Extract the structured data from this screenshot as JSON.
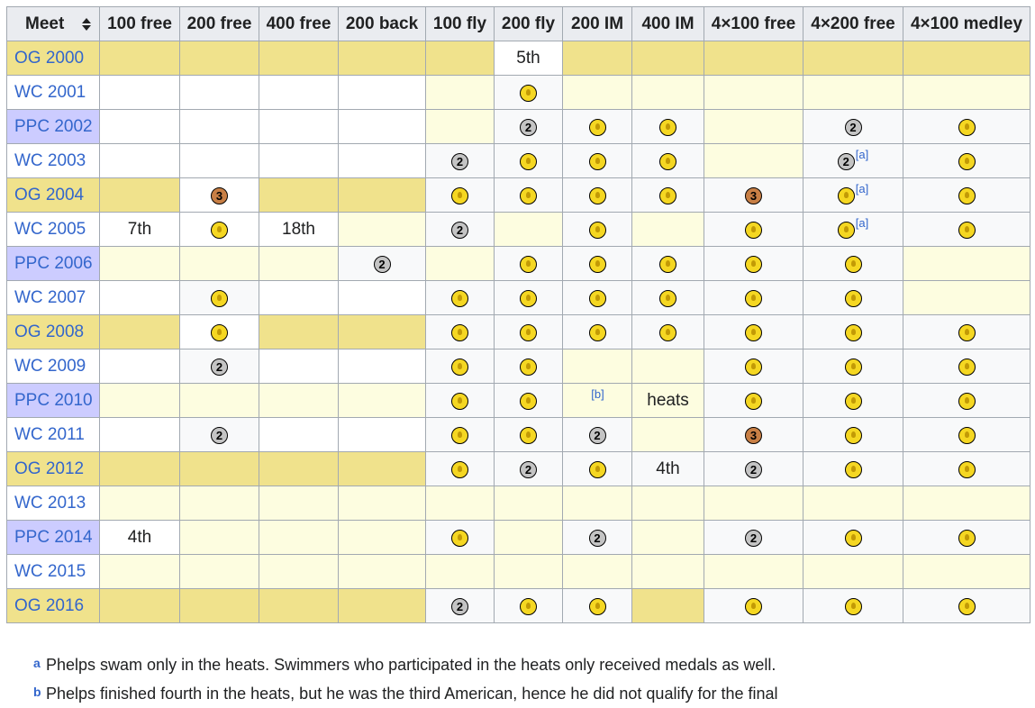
{
  "table": {
    "header": [
      "Meet",
      "100 free",
      "200 free",
      "400 free",
      "200 back",
      "100 fly",
      "200 fly",
      "200 IM",
      "400 IM",
      "4×100 free",
      "4×200 free",
      "4×100 medley"
    ],
    "rows": [
      {
        "meet": "OG 2000",
        "type": "og",
        "cells": [
          "",
          "",
          "",
          "",
          "",
          "5th",
          "",
          "",
          "",
          "",
          ""
        ]
      },
      {
        "meet": "WC 2001",
        "type": "wc",
        "cells": [
          "",
          "",
          "",
          "",
          "",
          "gold",
          "",
          "",
          "",
          "",
          ""
        ]
      },
      {
        "meet": "PPC 2002",
        "type": "ppc",
        "cells": [
          "",
          "",
          "",
          "",
          "",
          "silver",
          "gold",
          "gold",
          "",
          "silver",
          "gold"
        ]
      },
      {
        "meet": "WC 2003",
        "type": "wc",
        "cells": [
          "",
          "",
          "",
          "",
          "silver",
          "gold",
          "gold",
          "gold",
          "",
          "silver",
          "gold"
        ]
      },
      {
        "meet": "OG 2004",
        "type": "og",
        "cells": [
          "",
          "bronze",
          "",
          "",
          "gold",
          "gold",
          "gold",
          "gold",
          "bronze",
          "gold",
          "gold"
        ]
      },
      {
        "meet": "WC 2005",
        "type": "wc",
        "cells": [
          "7th",
          "gold",
          "18th",
          "",
          "silver",
          "",
          "gold",
          "",
          "gold",
          "gold",
          "gold"
        ]
      },
      {
        "meet": "PPC 2006",
        "type": "ppc",
        "cells": [
          "",
          "",
          "",
          "silver",
          "",
          "gold",
          "gold",
          "gold",
          "gold",
          "gold",
          ""
        ]
      },
      {
        "meet": "WC 2007",
        "type": "wc",
        "cells": [
          "",
          "gold",
          "",
          "",
          "gold",
          "gold",
          "gold",
          "gold",
          "gold",
          "gold",
          ""
        ]
      },
      {
        "meet": "OG 2008",
        "type": "og",
        "cells": [
          "",
          "gold",
          "",
          "",
          "gold",
          "gold",
          "gold",
          "gold",
          "gold",
          "gold",
          "gold"
        ]
      },
      {
        "meet": "WC 2009",
        "type": "wc",
        "cells": [
          "",
          "silver",
          "",
          "",
          "gold",
          "gold",
          "",
          "",
          "gold",
          "gold",
          "gold"
        ]
      },
      {
        "meet": "PPC 2010",
        "type": "ppc",
        "cells": [
          "",
          "",
          "",
          "",
          "gold",
          "gold",
          "",
          "heats",
          "gold",
          "gold",
          "gold"
        ]
      },
      {
        "meet": "WC 2011",
        "type": "wc",
        "cells": [
          "",
          "silver",
          "",
          "",
          "gold",
          "gold",
          "silver",
          "",
          "bronze",
          "gold",
          "gold"
        ]
      },
      {
        "meet": "OG 2012",
        "type": "og",
        "cells": [
          "",
          "",
          "",
          "",
          "gold",
          "silver",
          "gold",
          "4th",
          "silver",
          "gold",
          "gold"
        ]
      },
      {
        "meet": "WC 2013",
        "type": "wc",
        "cells": [
          "",
          "",
          "",
          "",
          "",
          "",
          "",
          "",
          "",
          "",
          ""
        ]
      },
      {
        "meet": "PPC 2014",
        "type": "ppc",
        "cells": [
          "4th",
          "",
          "",
          "",
          "gold",
          "",
          "silver",
          "",
          "silver",
          "gold",
          "gold"
        ]
      },
      {
        "meet": "WC 2015",
        "type": "wc",
        "cells": [
          "",
          "",
          "",
          "",
          "",
          "",
          "",
          "",
          "",
          "",
          ""
        ]
      },
      {
        "meet": "OG 2016",
        "type": "og",
        "cells": [
          "",
          "",
          "",
          "",
          "silver",
          "gold",
          "gold",
          "",
          "gold",
          "gold",
          "gold"
        ]
      }
    ],
    "cell_fills": [
      [
        "g",
        "g",
        "g",
        "g",
        "g",
        "w",
        "g",
        "g",
        "g",
        "g",
        "g"
      ],
      [
        "w",
        "w",
        "w",
        "w",
        "y",
        "t",
        "y",
        "y",
        "y",
        "y",
        "y"
      ],
      [
        "w",
        "w",
        "w",
        "w",
        "y",
        "t",
        "t",
        "t",
        "y",
        "t",
        "t"
      ],
      [
        "w",
        "w",
        "w",
        "w",
        "t",
        "t",
        "t",
        "t",
        "y",
        "t",
        "t"
      ],
      [
        "g",
        "w",
        "g",
        "g",
        "t",
        "t",
        "t",
        "t",
        "t",
        "t",
        "t"
      ],
      [
        "w",
        "w",
        "w",
        "y",
        "t",
        "y",
        "t",
        "y",
        "t",
        "t",
        "t"
      ],
      [
        "y",
        "y",
        "y",
        "t",
        "y",
        "t",
        "t",
        "t",
        "t",
        "t",
        "y"
      ],
      [
        "w",
        "t",
        "w",
        "w",
        "t",
        "t",
        "t",
        "t",
        "t",
        "t",
        "y"
      ],
      [
        "g",
        "w",
        "g",
        "g",
        "t",
        "t",
        "t",
        "t",
        "t",
        "t",
        "t"
      ],
      [
        "w",
        "t",
        "w",
        "w",
        "t",
        "t",
        "y",
        "y",
        "t",
        "t",
        "t"
      ],
      [
        "y",
        "y",
        "y",
        "y",
        "t",
        "t",
        "y",
        "y",
        "t",
        "t",
        "t"
      ],
      [
        "w",
        "t",
        "w",
        "w",
        "t",
        "t",
        "t",
        "y",
        "t",
        "t",
        "t"
      ],
      [
        "g",
        "g",
        "g",
        "g",
        "t",
        "t",
        "t",
        "t",
        "t",
        "t",
        "t"
      ],
      [
        "y",
        "y",
        "y",
        "y",
        "y",
        "y",
        "y",
        "y",
        "y",
        "y",
        "y"
      ],
      [
        "w",
        "y",
        "y",
        "y",
        "t",
        "y",
        "t",
        "y",
        "t",
        "t",
        "t"
      ],
      [
        "y",
        "y",
        "y",
        "y",
        "y",
        "y",
        "y",
        "y",
        "y",
        "y",
        "y"
      ],
      [
        "g",
        "g",
        "g",
        "g",
        "t",
        "t",
        "t",
        "g",
        "t",
        "t",
        "t"
      ]
    ],
    "superscripts": [
      {
        "row": 3,
        "col": 10,
        "text": "[a]"
      },
      {
        "row": 4,
        "col": 10,
        "text": "[a]"
      },
      {
        "row": 5,
        "col": 10,
        "text": "[a]"
      },
      {
        "row": 10,
        "col": 7,
        "text": "[b]"
      }
    ],
    "medal_numbers": {
      "silver": "2",
      "bronze": "3"
    }
  },
  "footnotes": [
    {
      "marker": "a",
      "text": "Phelps swam only in the heats. Swimmers who participated in the heats only received medals as well."
    },
    {
      "marker": "b",
      "text": "Phelps finished fourth in the heats, but he was the third American, hence he did not qualify for the final"
    }
  ],
  "colors": {
    "header_bg": "#eaecf0",
    "og_bg": "#f0e28c",
    "ppc_meet_bg": "#ccccff",
    "pale_yellow": "#fdfde0",
    "tinted_white": "#f8f9fa",
    "link": "#3366cc",
    "gold": "#f5d722",
    "silver": "#c4c4c4",
    "bronze": "#c87f45"
  }
}
